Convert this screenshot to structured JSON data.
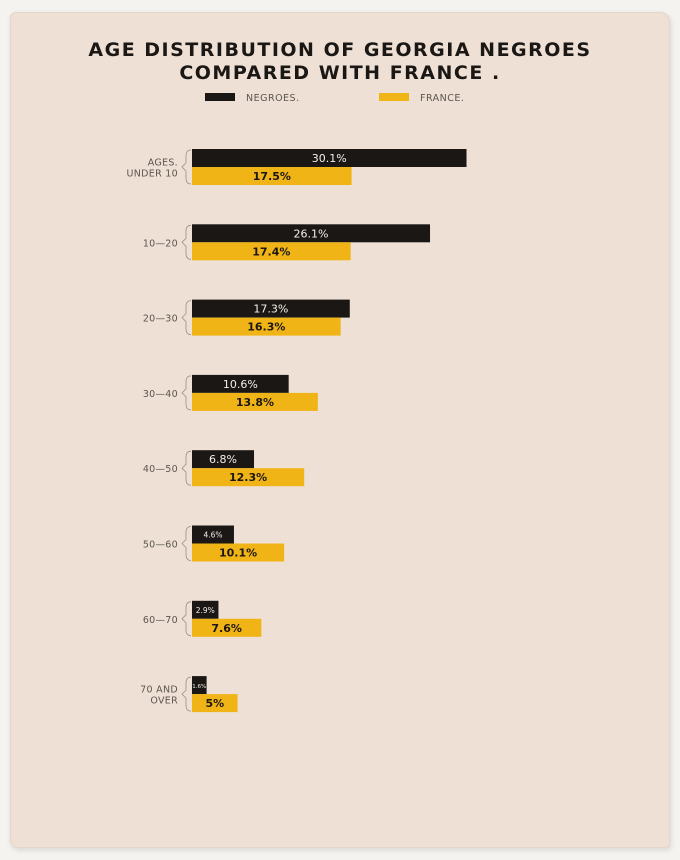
{
  "title_line1": "AGE DISTRIBUTION OF GEORGIA NEGROES",
  "title_line2": "COMPARED WITH FRANCE .",
  "colors": {
    "negroes": "#1b1715",
    "france": "#f1b416",
    "paper": "#eee0d4",
    "label": "#5c5650"
  },
  "chart_data": {
    "type": "bar",
    "orientation": "horizontal",
    "title": "AGE DISTRIBUTION OF GEORGIA NEGROES COMPARED WITH FRANCE .",
    "categories": [
      "AGES. UNDER 10",
      "10-20",
      "20-30",
      "30-40",
      "40-50",
      "50-60",
      "60-70",
      "70 AND OVER"
    ],
    "category_lines": [
      [
        "AGES.",
        "UNDER 10"
      ],
      [
        "10—20"
      ],
      [
        "20—30"
      ],
      [
        "30—40"
      ],
      [
        "40—50"
      ],
      [
        "50—60"
      ],
      [
        "60—70"
      ],
      [
        "70 AND",
        "OVER"
      ]
    ],
    "series": [
      {
        "name": "NEGROES.",
        "values": [
          30.1,
          26.1,
          17.3,
          10.6,
          6.8,
          4.6,
          2.9,
          1.6
        ],
        "labels": [
          "30.1%",
          "26.1%",
          "17.3%",
          "10.6%",
          "6.8%",
          "4.6%",
          "2.9%",
          "1.6%"
        ]
      },
      {
        "name": "FRANCE.",
        "values": [
          17.5,
          17.4,
          16.3,
          13.8,
          12.3,
          10.1,
          7.6,
          5.0
        ],
        "labels": [
          "17.5%",
          "17.4%",
          "16.3%",
          "13.8%",
          "12.3%",
          "10.1%",
          "7.6%",
          "5%"
        ]
      }
    ],
    "legend_position": "top",
    "grid": false
  }
}
